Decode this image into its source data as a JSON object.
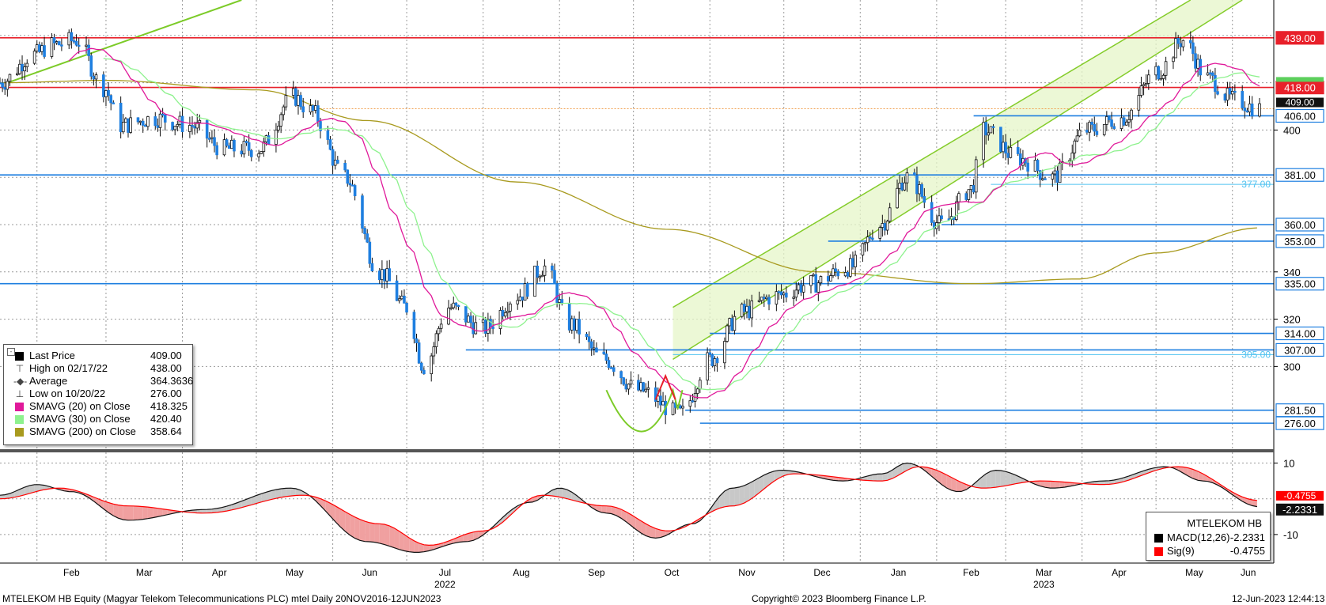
{
  "footer": {
    "left": "MTELEKOM HB Equity (Magyar Telekom Telecommunications PLC) mtel  Daily 20NOV2016-12JUN2023",
    "center": "Copyright© 2023 Bloomberg Finance L.P.",
    "right": "12-Jun-2023 12:44:13"
  },
  "legend": {
    "items": [
      {
        "marker": "square",
        "label": "Last Price",
        "value": "409.00",
        "color": "#000000"
      },
      {
        "marker": "high",
        "label": "High on 02/17/22",
        "value": "438.00",
        "color": "#444444"
      },
      {
        "marker": "avg",
        "label": "Average",
        "value": "364.3636",
        "color": "#444444"
      },
      {
        "marker": "low",
        "label": "Low on 10/20/22",
        "value": "276.00",
        "color": "#444444"
      },
      {
        "marker": "square",
        "label": "SMAVG (20)  on Close",
        "value": "418.325",
        "color": "#e0199a"
      },
      {
        "marker": "square",
        "label": "SMAVG (30)  on Close",
        "value": "420.40",
        "color": "#8ef28e"
      },
      {
        "marker": "square",
        "label": "SMAVG (200)  on Close",
        "value": "358.64",
        "color": "#a89a1e"
      }
    ]
  },
  "macd_legend": {
    "title": "MTELEKOM HB",
    "items": [
      {
        "label": "MACD(12,26)",
        "value": "-2.2331",
        "color": "#000000"
      },
      {
        "label": "Sig(9)",
        "value": "-0.4755",
        "color": "#ff0000"
      }
    ]
  },
  "chart_data": {
    "type": "candlestick",
    "x_range": [
      "2022-01-17",
      "2023-06-12"
    ],
    "ylim": [
      265,
      455
    ],
    "y_ticks": [
      300,
      320,
      340,
      400
    ],
    "month_labels": [
      "Feb",
      "Mar",
      "Apr",
      "May",
      "Jun",
      "Jul",
      "Aug",
      "Sep",
      "Oct",
      "Nov",
      "Dec",
      "Jan",
      "Feb",
      "Mar",
      "Apr",
      "May",
      "Jun"
    ],
    "year_labels": [
      {
        "label": "2022",
        "under": "Jul"
      },
      {
        "label": "2023",
        "under": "Mar"
      }
    ],
    "price_lines": [
      {
        "value": 439.0,
        "label": "439.00",
        "color": "#e8202a"
      },
      {
        "value": 418.0,
        "label": "418.00",
        "color": "#e8202a"
      },
      {
        "value": 406.0,
        "label": "406.00",
        "color": "#1e7fe0"
      },
      {
        "value": 381.0,
        "label": "381.00",
        "color": "#1e7fe0"
      },
      {
        "value": 377.0,
        "label": "377.00",
        "color": "#4fc2f0"
      },
      {
        "value": 360.0,
        "label": "360.00",
        "color": "#1e7fe0"
      },
      {
        "value": 353.0,
        "label": "353.00",
        "color": "#1e7fe0"
      },
      {
        "value": 335.0,
        "label": "335.00",
        "color": "#1e7fe0"
      },
      {
        "value": 314.0,
        "label": "314.00",
        "color": "#1e7fe0"
      },
      {
        "value": 307.0,
        "label": "307.00",
        "color": "#1e7fe0"
      },
      {
        "value": 305.0,
        "label": "305.00",
        "color": "#4fc2f0"
      },
      {
        "value": 281.5,
        "label": "281.50",
        "color": "#1e7fe0"
      },
      {
        "value": 276.0,
        "label": "276.00",
        "color": "#1e7fe0"
      }
    ],
    "last_price": {
      "value": 409.0,
      "label": "409.00"
    },
    "sma20_last": 418.325,
    "sma30_last": 420.4,
    "close_series": [
      {
        "date": "2022-01-17",
        "close": 420
      },
      {
        "date": "2022-01-31",
        "close": 432
      },
      {
        "date": "2022-02-07",
        "close": 436
      },
      {
        "date": "2022-02-17",
        "close": 438
      },
      {
        "date": "2022-02-28",
        "close": 418
      },
      {
        "date": "2022-03-07",
        "close": 402
      },
      {
        "date": "2022-03-21",
        "close": 405
      },
      {
        "date": "2022-04-04",
        "close": 402
      },
      {
        "date": "2022-04-18",
        "close": 392
      },
      {
        "date": "2022-05-02",
        "close": 392
      },
      {
        "date": "2022-05-16",
        "close": 414
      },
      {
        "date": "2022-05-23",
        "close": 408
      },
      {
        "date": "2022-06-06",
        "close": 380
      },
      {
        "date": "2022-06-20",
        "close": 340
      },
      {
        "date": "2022-07-01",
        "close": 325
      },
      {
        "date": "2022-07-08",
        "close": 300
      },
      {
        "date": "2022-07-18",
        "close": 325
      },
      {
        "date": "2022-08-01",
        "close": 316
      },
      {
        "date": "2022-08-15",
        "close": 330
      },
      {
        "date": "2022-08-26",
        "close": 342
      },
      {
        "date": "2022-09-05",
        "close": 318
      },
      {
        "date": "2022-09-19",
        "close": 303
      },
      {
        "date": "2022-10-03",
        "close": 290
      },
      {
        "date": "2022-10-20",
        "close": 280
      },
      {
        "date": "2022-11-01",
        "close": 303
      },
      {
        "date": "2022-11-14",
        "close": 323
      },
      {
        "date": "2022-11-28",
        "close": 330
      },
      {
        "date": "2022-12-12",
        "close": 335
      },
      {
        "date": "2022-12-28",
        "close": 342
      },
      {
        "date": "2023-01-09",
        "close": 360
      },
      {
        "date": "2023-01-20",
        "close": 380
      },
      {
        "date": "2023-02-03",
        "close": 360
      },
      {
        "date": "2023-02-15",
        "close": 375
      },
      {
        "date": "2023-02-20",
        "close": 400
      },
      {
        "date": "2023-03-06",
        "close": 388
      },
      {
        "date": "2023-03-20",
        "close": 380
      },
      {
        "date": "2023-04-03",
        "close": 400
      },
      {
        "date": "2023-04-17",
        "close": 405
      },
      {
        "date": "2023-05-02",
        "close": 425
      },
      {
        "date": "2023-05-12",
        "close": 438
      },
      {
        "date": "2023-05-22",
        "close": 422
      },
      {
        "date": "2023-06-01",
        "close": 413
      },
      {
        "date": "2023-06-12",
        "close": 409
      }
    ],
    "sma200_series": [
      {
        "date": "2022-01-17",
        "value": 420
      },
      {
        "date": "2022-03-01",
        "value": 421
      },
      {
        "date": "2022-05-01",
        "value": 417
      },
      {
        "date": "2022-06-15",
        "value": 404
      },
      {
        "date": "2022-08-15",
        "value": 378
      },
      {
        "date": "2022-10-15",
        "value": 358
      },
      {
        "date": "2022-12-15",
        "value": 340
      },
      {
        "date": "2023-02-15",
        "value": 335
      },
      {
        "date": "2023-03-31",
        "value": 337
      },
      {
        "date": "2023-05-01",
        "value": 348
      },
      {
        "date": "2023-06-12",
        "value": 358.64
      }
    ],
    "channel": {
      "lower_start": {
        "date": "2022-10-17",
        "value": 303
      },
      "lower_end": {
        "date": "2023-06-05",
        "value": 455
      },
      "upper_start": {
        "date": "2022-10-17",
        "value": 325
      },
      "upper_end": {
        "date": "2023-05-15",
        "value": 455
      }
    },
    "top_trendline": {
      "start": {
        "date": "2022-01-20",
        "value": 420
      },
      "end": {
        "date": "2022-04-25",
        "value": 455
      }
    },
    "macd": {
      "ylim": [
        -18,
        13
      ],
      "y_ticks": [
        10,
        -10
      ],
      "last_macd": -2.2331,
      "last_signal": -0.4755,
      "last_macd_label": "-2.2331",
      "last_signal_label": "-0.4755",
      "macd_series": [
        {
          "date": "2022-01-17",
          "value": 1
        },
        {
          "date": "2022-02-01",
          "value": 4
        },
        {
          "date": "2022-02-15",
          "value": 2
        },
        {
          "date": "2022-03-10",
          "value": -6
        },
        {
          "date": "2022-04-10",
          "value": -3
        },
        {
          "date": "2022-05-15",
          "value": 3
        },
        {
          "date": "2022-06-15",
          "value": -12
        },
        {
          "date": "2022-07-05",
          "value": -15
        },
        {
          "date": "2022-07-25",
          "value": -12
        },
        {
          "date": "2022-08-20",
          "value": -1
        },
        {
          "date": "2022-09-01",
          "value": 3
        },
        {
          "date": "2022-09-20",
          "value": -4
        },
        {
          "date": "2022-10-10",
          "value": -11
        },
        {
          "date": "2022-10-25",
          "value": -7
        },
        {
          "date": "2022-11-10",
          "value": 3
        },
        {
          "date": "2022-11-30",
          "value": 8
        },
        {
          "date": "2022-12-25",
          "value": 5
        },
        {
          "date": "2023-01-10",
          "value": 7
        },
        {
          "date": "2023-01-20",
          "value": 10
        },
        {
          "date": "2023-02-10",
          "value": 2
        },
        {
          "date": "2023-02-25",
          "value": 8
        },
        {
          "date": "2023-03-20",
          "value": 3
        },
        {
          "date": "2023-04-10",
          "value": 5
        },
        {
          "date": "2023-05-05",
          "value": 9
        },
        {
          "date": "2023-05-20",
          "value": 5
        },
        {
          "date": "2023-06-12",
          "value": -2.2331
        }
      ],
      "signal_series": [
        {
          "date": "2022-01-17",
          "value": 0
        },
        {
          "date": "2022-02-10",
          "value": 3
        },
        {
          "date": "2022-03-10",
          "value": -2
        },
        {
          "date": "2022-04-10",
          "value": -4
        },
        {
          "date": "2022-05-20",
          "value": 1
        },
        {
          "date": "2022-06-20",
          "value": -7
        },
        {
          "date": "2022-07-10",
          "value": -13
        },
        {
          "date": "2022-08-01",
          "value": -9
        },
        {
          "date": "2022-08-25",
          "value": 1
        },
        {
          "date": "2022-09-20",
          "value": -2
        },
        {
          "date": "2022-10-15",
          "value": -9
        },
        {
          "date": "2022-11-10",
          "value": -2
        },
        {
          "date": "2022-12-05",
          "value": 7
        },
        {
          "date": "2023-01-10",
          "value": 5
        },
        {
          "date": "2023-01-25",
          "value": 9
        },
        {
          "date": "2023-02-20",
          "value": 3
        },
        {
          "date": "2023-03-15",
          "value": 5
        },
        {
          "date": "2023-04-10",
          "value": 4
        },
        {
          "date": "2023-05-10",
          "value": 9
        },
        {
          "date": "2023-06-12",
          "value": -0.4755
        }
      ]
    }
  }
}
